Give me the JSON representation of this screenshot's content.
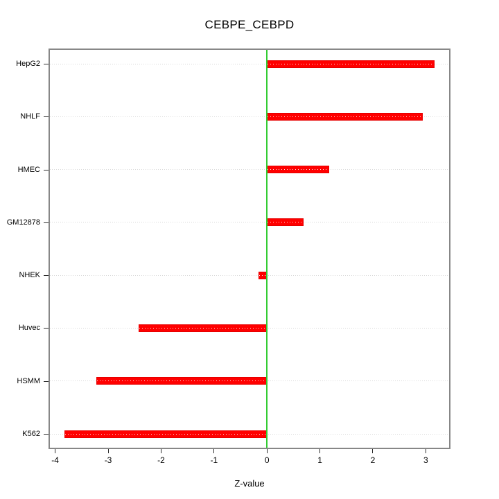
{
  "title": "CEBPE_CEBPD",
  "chart_data": {
    "type": "bar",
    "orientation": "horizontal",
    "title": "CEBPE_CEBPD",
    "xlabel": "Z-value",
    "ylabel": "",
    "categories": [
      "HepG2",
      "NHLF",
      "HMEC",
      "GM12878",
      "NHEK",
      "Huvec",
      "HSMM",
      "K562"
    ],
    "values": [
      3.17,
      2.94,
      1.18,
      0.69,
      -0.16,
      -2.42,
      -3.22,
      -3.82
    ],
    "xlim": [
      -4.1,
      3.44
    ],
    "xticks": [
      -4,
      -3,
      -2,
      -1,
      0,
      1,
      2,
      3
    ],
    "grid": "horizontal dotted, one line per category, drawn across full plot width",
    "zero_reference_line": 0,
    "legend": "none",
    "colors": {
      "bar": "#ff0000",
      "zero_line": "#33cc33",
      "gridline": "#d8d8d8",
      "plot_border": "#878787",
      "tick": "#2a2a2a",
      "text": "#000000",
      "background": "#ffffff"
    }
  }
}
